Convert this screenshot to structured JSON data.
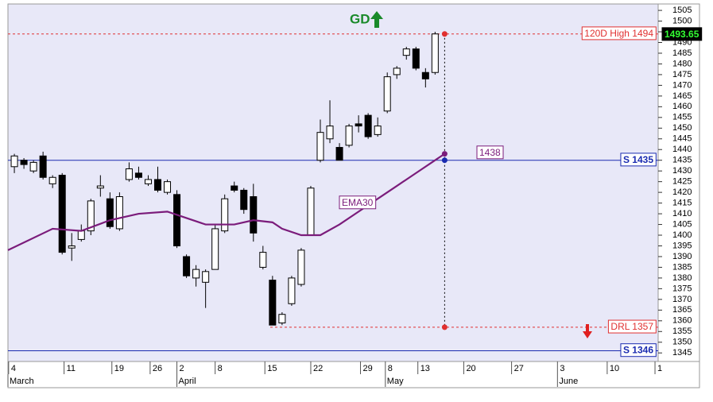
{
  "chart_data": {
    "type": "candlestick",
    "x": [
      0,
      1,
      2,
      3,
      4,
      5,
      6,
      7,
      8,
      9,
      10,
      11,
      12,
      13,
      14,
      15,
      16,
      17,
      18,
      19,
      20,
      21,
      22,
      23,
      24,
      25,
      26,
      27,
      28,
      29,
      30,
      31,
      32,
      33,
      34,
      35,
      36,
      37,
      38,
      39,
      40,
      41,
      42,
      43,
      44
    ],
    "open": [
      1432,
      1435,
      1430,
      1437,
      1424,
      1428,
      1394,
      1398,
      1402,
      1422,
      1417,
      1403,
      1426,
      1429,
      1424,
      1426,
      1420,
      1419,
      1390,
      1380,
      1378,
      1384,
      1402,
      1423,
      1421,
      1418,
      1385,
      1379,
      1359,
      1368,
      1377,
      1400,
      1435,
      1445,
      1441,
      1442,
      1452,
      1456,
      1447,
      1458,
      1475,
      1484,
      1487,
      1476,
      1476
    ],
    "high": [
      1438,
      1436,
      1435,
      1439,
      1428,
      1429,
      1401,
      1405,
      1417,
      1428,
      1420,
      1420,
      1434,
      1432,
      1428,
      1432,
      1426,
      1421,
      1391,
      1386,
      1384,
      1405,
      1419,
      1425,
      1422,
      1424,
      1395,
      1381,
      1364,
      1381,
      1394,
      1423,
      1454,
      1463,
      1443,
      1452,
      1456,
      1457,
      1455,
      1476,
      1479,
      1488,
      1488,
      1478,
      1495
    ],
    "low": [
      1429,
      1431,
      1429,
      1426,
      1422,
      1391,
      1388,
      1397,
      1400,
      1418,
      1403,
      1402,
      1425,
      1426,
      1423,
      1420,
      1419,
      1394,
      1380,
      1376,
      1366,
      1384,
      1401,
      1420,
      1410,
      1397,
      1384,
      1358,
      1358,
      1367,
      1376,
      1400,
      1434,
      1443,
      1435,
      1441,
      1448,
      1445,
      1446,
      1457,
      1473,
      1482,
      1477,
      1469,
      1475
    ],
    "close": [
      1437,
      1433,
      1434,
      1427,
      1427,
      1392,
      1395,
      1402,
      1416,
      1423,
      1404,
      1418,
      1431,
      1427,
      1426,
      1421,
      1425,
      1395,
      1381,
      1384,
      1383,
      1403,
      1417,
      1421,
      1412,
      1401,
      1392,
      1358,
      1363,
      1380,
      1393,
      1422,
      1448,
      1451,
      1435,
      1451,
      1451,
      1446,
      1451,
      1474,
      1478,
      1487,
      1478,
      1473,
      1494
    ],
    "ema": {
      "name": "EMA30",
      "color": "#7b1c7b",
      "x": [
        -0.67,
        4,
        7,
        10,
        13,
        16,
        18,
        20,
        23,
        25,
        27,
        28,
        30,
        32,
        34,
        36,
        38,
        40,
        42,
        44,
        45
      ],
      "values": [
        1393,
        1403,
        1402,
        1407,
        1410,
        1411,
        1408,
        1405,
        1405,
        1407,
        1406,
        1403,
        1400,
        1400,
        1405,
        1411,
        1417,
        1423,
        1429,
        1435,
        1438
      ],
      "value_label": "1438"
    },
    "levels": [
      {
        "label": "120D High 1494",
        "value": 1494,
        "color": "#e03030",
        "style": "dashed"
      },
      {
        "label": "S 1435",
        "value": 1435,
        "color": "#1a2bb0",
        "style": "solid"
      },
      {
        "label": "DRL 1357",
        "value": 1357,
        "color": "#e03030",
        "style": "dashed"
      },
      {
        "label": "S 1346",
        "value": 1346,
        "color": "#1a2bb0",
        "style": "solid"
      }
    ],
    "last_price": {
      "label": "1493.65",
      "value": 1493.65
    },
    "signal": "GD",
    "ylim": [
      1341,
      1508
    ],
    "yticks": [
      1345,
      1350,
      1355,
      1360,
      1365,
      1370,
      1375,
      1380,
      1385,
      1390,
      1395,
      1400,
      1405,
      1410,
      1415,
      1420,
      1425,
      1430,
      1435,
      1440,
      1445,
      1450,
      1455,
      1460,
      1465,
      1470,
      1475,
      1480,
      1485,
      1490,
      1495,
      1500,
      1505
    ],
    "xlim": [
      -0.67,
      67.33
    ],
    "xticks": [
      {
        "value": -0.6,
        "label": "4"
      },
      {
        "value": 5.2,
        "label": "11"
      },
      {
        "value": 10.2,
        "label": "19"
      },
      {
        "value": 14.2,
        "label": "26"
      },
      {
        "value": 17,
        "label": "2"
      },
      {
        "value": 21,
        "label": "8"
      },
      {
        "value": 26.2,
        "label": "15"
      },
      {
        "value": 31,
        "label": "22"
      },
      {
        "value": 36.2,
        "label": "29"
      },
      {
        "value": 38.8,
        "label": "8"
      },
      {
        "value": 42.2,
        "label": "13"
      },
      {
        "value": 47,
        "label": "20"
      },
      {
        "value": 52,
        "label": "27"
      },
      {
        "value": 56.8,
        "label": "3"
      },
      {
        "value": 62,
        "label": "10"
      },
      {
        "value": 67,
        "label": "1"
      }
    ],
    "month_ticks": [
      {
        "value": -0.67,
        "label": "March"
      },
      {
        "value": 17,
        "label": "April"
      },
      {
        "value": 38.8,
        "label": "May"
      },
      {
        "value": 56.8,
        "label": "June"
      }
    ]
  }
}
